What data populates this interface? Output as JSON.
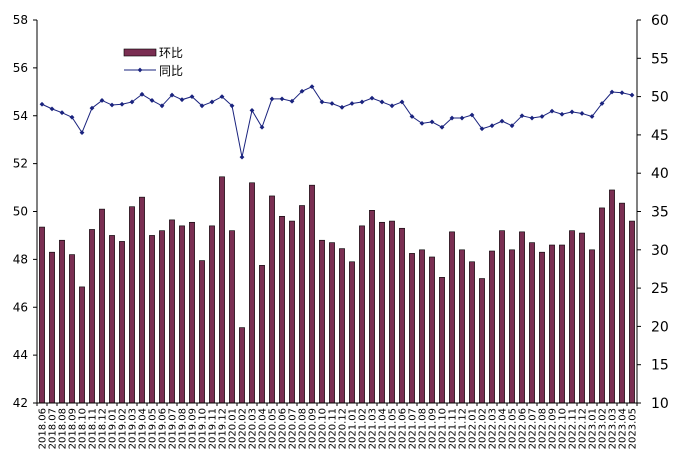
{
  "chart_data": {
    "type": "bar",
    "title": "",
    "categories": [
      "2018.06",
      "2018.07",
      "2018.08",
      "2018.09",
      "2018.10",
      "2018.11",
      "2018.12",
      "2019.01",
      "2019.02",
      "2019.03",
      "2019.04",
      "2019.05",
      "2019.06",
      "2019.07",
      "2019.08",
      "2019.09",
      "2019.10",
      "2019.11",
      "2019.12",
      "2020.01",
      "2020.02",
      "2020.03",
      "2020.04",
      "2020.05",
      "2020.06",
      "2020.07",
      "2020.08",
      "2020.09",
      "2020.10",
      "2020.11",
      "2020.12",
      "2021.01",
      "2021.02",
      "2021.03",
      "2021.04",
      "2021.05",
      "2021.06",
      "2021.07",
      "2021.08",
      "2021.09",
      "2021.10",
      "2021.11",
      "2021.12",
      "2022.01",
      "2022.02",
      "2022.03",
      "2022.04",
      "2022.05",
      "2022.06",
      "2022.07",
      "2022.08",
      "2022.09",
      "2022.10",
      "2022.11",
      "2022.12",
      "2023.01",
      "2023.02",
      "2023.03",
      "2023.04",
      "2023.05"
    ],
    "series": [
      {
        "name": "环比",
        "type": "bar",
        "axis": "left",
        "color": "#7a2e52",
        "values": [
          49.35,
          48.3,
          48.8,
          48.2,
          46.85,
          49.25,
          50.1,
          49.0,
          48.75,
          50.2,
          50.6,
          49.0,
          49.2,
          49.65,
          49.4,
          49.55,
          47.95,
          49.4,
          51.45,
          49.2,
          45.15,
          51.2,
          47.75,
          50.65,
          49.8,
          49.6,
          50.25,
          51.1,
          48.8,
          48.7,
          48.45,
          47.9,
          49.4,
          50.05,
          49.55,
          49.6,
          49.3,
          48.25,
          48.4,
          48.1,
          47.25,
          49.15,
          48.4,
          47.9,
          47.2,
          48.35,
          49.2,
          48.4,
          49.15,
          48.7,
          48.3,
          48.6,
          48.6,
          49.2,
          49.1,
          48.4,
          50.15,
          50.9,
          50.35,
          49.6
        ]
      },
      {
        "name": "同比",
        "type": "line",
        "axis": "right",
        "color": "#1a237e",
        "values": [
          49.0,
          48.4,
          47.9,
          47.3,
          45.3,
          48.5,
          49.5,
          48.9,
          49.0,
          49.3,
          50.3,
          49.5,
          48.8,
          50.2,
          49.6,
          50.0,
          48.8,
          49.3,
          50.0,
          48.8,
          42.1,
          48.2,
          46.0,
          49.7,
          49.7,
          49.4,
          50.7,
          51.3,
          49.3,
          49.1,
          48.6,
          49.1,
          49.3,
          49.8,
          49.3,
          48.8,
          49.3,
          47.4,
          46.5,
          46.7,
          46.0,
          47.2,
          47.2,
          47.6,
          45.8,
          46.2,
          46.8,
          46.2,
          47.5,
          47.2,
          47.4,
          48.1,
          47.7,
          48.0,
          47.8,
          47.4,
          49.1,
          50.6,
          50.5,
          50.2
        ]
      }
    ],
    "y_left": {
      "min": 42,
      "max": 58,
      "ticks": [
        42,
        44,
        46,
        48,
        50,
        52,
        54,
        56,
        58
      ]
    },
    "y_right": {
      "min": 10,
      "max": 60,
      "ticks": [
        10,
        15,
        20,
        25,
        30,
        35,
        40,
        45,
        50,
        55,
        60
      ]
    },
    "legend": {
      "placement": "top-left",
      "items": [
        {
          "label": "环比",
          "symbol": "bar"
        },
        {
          "label": "同比",
          "symbol": "line-diamond"
        }
      ]
    },
    "grid": false,
    "xlabel": "",
    "ylabel": "",
    "x_tick_rotation": "vertical"
  }
}
